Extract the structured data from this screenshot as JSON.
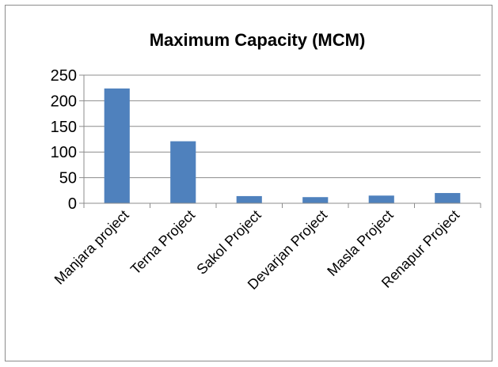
{
  "chart_data": {
    "type": "bar",
    "title": "Maximum Capacity (MCM)",
    "xlabel": "",
    "ylabel": "",
    "categories": [
      "Manjara project",
      "Terna Project",
      "Sakol Project",
      "Devarjan Project",
      "Masla Project",
      "Renapur Project"
    ],
    "values": [
      224,
      121,
      14,
      12,
      15,
      20
    ],
    "ylim": [
      0,
      250
    ],
    "yticks": [
      0,
      50,
      100,
      150,
      200,
      250
    ],
    "grid": true,
    "legend": "none",
    "bar_color": "#4f81bd"
  }
}
